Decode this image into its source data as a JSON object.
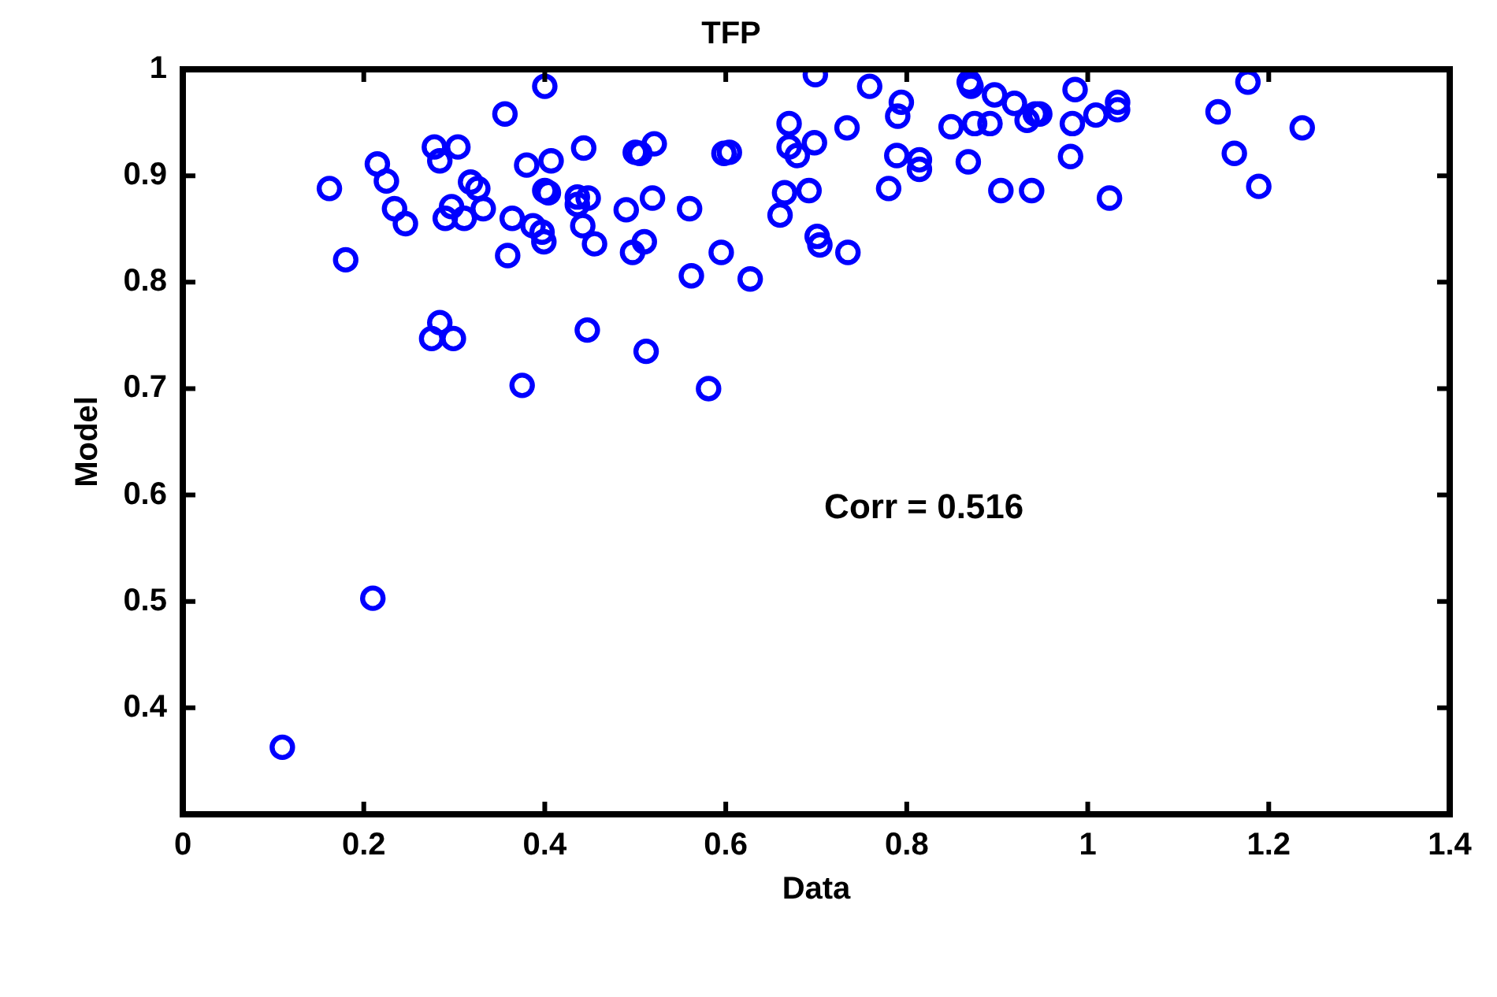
{
  "chart_data": {
    "type": "scatter",
    "title": "TFP",
    "xlabel": "Data",
    "ylabel": "Model",
    "annotations": [
      "Corr = 0.516"
    ],
    "marker": "circle",
    "grid": false,
    "legend": false,
    "xlim": [
      0,
      1.4
    ],
    "ylim": [
      0.3,
      1
    ],
    "xticks": [
      0,
      0.2,
      0.4,
      0.6,
      0.8,
      1,
      1.2,
      1.4
    ],
    "yticks": [
      {
        "value": 0.3,
        "label": null
      },
      0.4,
      0.5,
      0.6,
      0.7,
      0.8,
      0.9,
      1
    ],
    "series": [
      {
        "color": "#0000ff",
        "x": [
          0.11,
          0.21,
          0.4,
          0.356,
          0.278,
          0.304,
          0.284,
          0.215,
          0.225,
          0.162,
          0.38,
          0.407,
          0.443,
          0.5,
          0.318,
          0.326,
          0.4,
          0.404,
          0.436,
          0.448,
          0.436,
          0.234,
          0.246,
          0.297,
          0.29,
          0.311,
          0.332,
          0.364,
          0.387,
          0.397,
          0.399,
          0.442,
          0.455,
          0.497,
          0.18,
          0.359,
          0.284,
          0.275,
          0.299,
          0.447,
          0.375,
          0.512,
          0.699,
          0.759,
          0.794,
          0.79,
          0.869,
          0.871,
          0.897,
          0.919,
          0.942,
          0.933,
          0.849,
          0.875,
          0.892,
          0.67,
          0.734,
          0.521,
          0.505,
          0.598,
          0.604,
          0.67,
          0.698,
          0.679,
          0.789,
          0.814,
          0.814,
          0.868,
          0.78,
          0.665,
          0.692,
          0.904,
          0.938,
          0.519,
          0.49,
          0.56,
          0.66,
          0.51,
          0.595,
          0.701,
          0.704,
          0.735,
          0.562,
          0.627,
          0.581,
          0.986,
          0.947,
          0.983,
          1.009,
          1.033,
          1.033,
          0.981,
          1.024,
          1.177,
          1.144,
          1.237,
          1.162,
          1.189
        ],
        "values": [
          0.363,
          0.503,
          0.984,
          0.958,
          0.927,
          0.927,
          0.914,
          0.911,
          0.895,
          0.888,
          0.91,
          0.914,
          0.926,
          0.922,
          0.894,
          0.888,
          0.886,
          0.884,
          0.88,
          0.879,
          0.873,
          0.869,
          0.855,
          0.871,
          0.86,
          0.86,
          0.869,
          0.86,
          0.853,
          0.847,
          0.838,
          0.853,
          0.836,
          0.828,
          0.821,
          0.825,
          0.762,
          0.747,
          0.747,
          0.755,
          0.703,
          0.735,
          0.995,
          0.984,
          0.969,
          0.956,
          0.988,
          0.984,
          0.976,
          0.968,
          0.958,
          0.952,
          0.946,
          0.949,
          0.949,
          0.949,
          0.945,
          0.93,
          0.921,
          0.921,
          0.922,
          0.927,
          0.931,
          0.919,
          0.919,
          0.915,
          0.906,
          0.913,
          0.888,
          0.884,
          0.886,
          0.886,
          0.886,
          0.879,
          0.868,
          0.869,
          0.863,
          0.838,
          0.828,
          0.843,
          0.835,
          0.828,
          0.806,
          0.803,
          0.7,
          0.981,
          0.958,
          0.949,
          0.957,
          0.969,
          0.962,
          0.918,
          0.879,
          0.988,
          0.96,
          0.945,
          0.921,
          0.89
        ]
      }
    ]
  }
}
